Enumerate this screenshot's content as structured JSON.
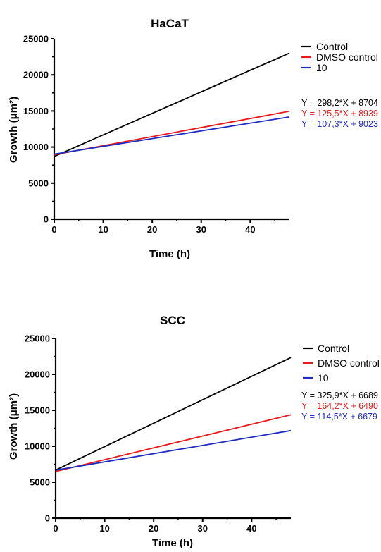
{
  "chart_data": [
    {
      "type": "line",
      "title": "HaCaT",
      "xlabel": "Time (h)",
      "ylabel": "Growth (μm²)",
      "xlim": [
        0,
        48
      ],
      "ylim": [
        0,
        25000
      ],
      "x_ticks": [
        "0",
        "10",
        "20",
        "30",
        "40"
      ],
      "y_ticks": [
        "0",
        "5000",
        "10000",
        "15000",
        "20000",
        "25000"
      ],
      "grid": false,
      "legend_position": "right",
      "series": [
        {
          "name": "Control",
          "color": "#000000",
          "slope": 298.2,
          "intercept": 8704,
          "x": [
            0,
            48
          ],
          "y": [
            8704,
            23017.6
          ],
          "equation": "Y = 298,2*X + 8704"
        },
        {
          "name": "DMSO control",
          "color": "#e8191b",
          "slope": 125.5,
          "intercept": 8939,
          "x": [
            0,
            48
          ],
          "y": [
            8939,
            14963
          ],
          "equation": "Y = 125,5*X + 8939"
        },
        {
          "name": "10",
          "color": "#1f2cc4",
          "slope": 107.3,
          "intercept": 9023,
          "x": [
            0,
            48
          ],
          "y": [
            9023,
            14173.4
          ],
          "equation": "Y = 107,3*X + 9023"
        }
      ]
    },
    {
      "type": "line",
      "title": "SCC",
      "xlabel": "Time (h)",
      "ylabel": "Growth (μm²)",
      "xlim": [
        0,
        48
      ],
      "ylim": [
        0,
        25000
      ],
      "x_ticks": [
        "0",
        "10",
        "20",
        "30",
        "40"
      ],
      "y_ticks": [
        "0",
        "5000",
        "10000",
        "15000",
        "20000",
        "25000"
      ],
      "grid": false,
      "legend_position": "right",
      "series": [
        {
          "name": "Control",
          "color": "#000000",
          "slope": 325.9,
          "intercept": 6689,
          "x": [
            0,
            48
          ],
          "y": [
            6689,
            22332.2
          ],
          "equation": "Y = 325,9*X + 6689"
        },
        {
          "name": "DMSO control",
          "color": "#e8191b",
          "slope": 164.2,
          "intercept": 6490,
          "x": [
            0,
            48
          ],
          "y": [
            6490,
            14371.6
          ],
          "equation": "Y = 164,2*X + 6490"
        },
        {
          "name": "10",
          "color": "#1f2cc4",
          "slope": 114.5,
          "intercept": 6679,
          "x": [
            0,
            48
          ],
          "y": [
            6679,
            12175
          ],
          "equation": "Y = 114,5*X + 6679"
        }
      ]
    }
  ]
}
